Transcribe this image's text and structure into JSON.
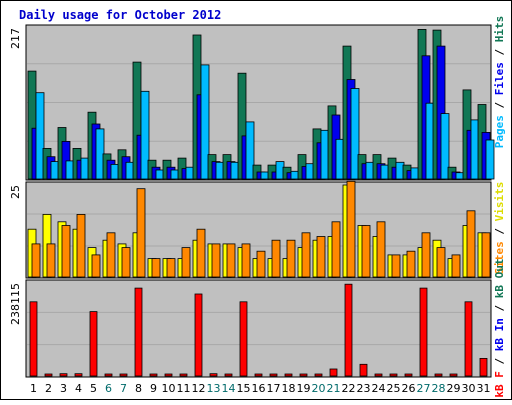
{
  "chart_data": {
    "type": "bar",
    "title": "Daily usage for October 2012",
    "categories": [
      "1",
      "2",
      "3",
      "4",
      "5",
      "6",
      "7",
      "8",
      "9",
      "10",
      "11",
      "12",
      "13",
      "14",
      "15",
      "16",
      "17",
      "18",
      "19",
      "20",
      "21",
      "22",
      "23",
      "24",
      "25",
      "26",
      "27",
      "28",
      "29",
      "30",
      "31"
    ],
    "weekend_days": [
      "6",
      "7",
      "13",
      "14",
      "20",
      "21",
      "27",
      "28"
    ],
    "colors": {
      "frame": "#000000",
      "background": "#ffffff",
      "plot_bg": "#c0c0c0",
      "grid": "#a8a8a8",
      "title": "#0000cc",
      "axis_text": "#000000",
      "weekend_text": "#006b6b",
      "tick_text": "#000000"
    },
    "panels": [
      {
        "name": "hits-files-pages",
        "ymax_label": "217",
        "ylim": [
          0,
          217
        ],
        "series": [
          {
            "name": "Hits",
            "color": "#117755",
            "values": [
              155,
              44,
              74,
              44,
              96,
              36,
              42,
              168,
              27,
              27,
              30,
              207,
              35,
              35,
              152,
              20,
              20,
              17,
              35,
              72,
              105,
              191,
              35,
              35,
              30,
              20,
              215,
              214,
              17,
              128,
              107
            ]
          },
          {
            "name": "Files",
            "color": "#0000ee",
            "values": [
              73,
              32,
              54,
              27,
              79,
              27,
              32,
              63,
              17,
              17,
              15,
              121,
              25,
              25,
              62,
              10,
              10,
              9,
              18,
              52,
              92,
              143,
              22,
              22,
              17,
              12,
              177,
              191,
              10,
              70,
              67
            ]
          },
          {
            "name": "Pages",
            "color": "#00bbff",
            "values": [
              124,
              25,
              26,
              30,
              72,
              21,
              24,
              126,
              13,
              13,
              17,
              164,
              24,
              24,
              82,
              10,
              25,
              11,
              22,
              70,
              57,
              130,
              24,
              20,
              24,
              16,
              109,
              94,
              9,
              85,
              56
            ]
          }
        ]
      },
      {
        "name": "visits-sites",
        "ymax_label": "25",
        "ylim": [
          0,
          25
        ],
        "series": [
          {
            "name": "Visits",
            "color": "#ffff00",
            "values": [
              13,
              17,
              15,
              13,
              8,
              10,
              9,
              12,
              5,
              5,
              5,
              10,
              9,
              9,
              8,
              5,
              5,
              5,
              8,
              10,
              11,
              25,
              14,
              11,
              6,
              6,
              8,
              10,
              5,
              14,
              12
            ]
          },
          {
            "name": "Sites",
            "color": "#ff8800",
            "values": [
              9,
              9,
              14,
              17,
              6,
              12,
              8,
              24,
              5,
              5,
              8,
              13,
              9,
              9,
              9,
              7,
              10,
              10,
              12,
              11,
              15,
              26,
              14,
              15,
              6,
              7,
              12,
              8,
              6,
              18,
              12
            ]
          }
        ]
      },
      {
        "name": "kbf",
        "ymax_label": "238115",
        "ylim": [
          0,
          238115
        ],
        "series": [
          {
            "name": "KBytes",
            "color": "#ff0000",
            "values": [
              190000,
              5000,
              6000,
              6000,
              165000,
              3000,
              3000,
              225000,
              2000,
              2000,
              2000,
              210000,
              6000,
              3000,
              190000,
              2000,
              2000,
              2000,
              2000,
              2000,
              18000,
              235000,
              30000,
              2000,
              2000,
              2000,
              225000,
              3000,
              3000,
              190000,
              45000
            ]
          }
        ]
      }
    ],
    "side_labels": {
      "top": [
        {
          "text": "Pages",
          "color": "#00bbff"
        },
        {
          "text": " / ",
          "color": "#000000"
        },
        {
          "text": "Files",
          "color": "#0000ee"
        },
        {
          "text": " / ",
          "color": "#000000"
        },
        {
          "text": "Hits",
          "color": "#117755"
        }
      ],
      "middle": [
        {
          "text": "Sites",
          "color": "#ff8800"
        },
        {
          "text": " / ",
          "color": "#000000"
        },
        {
          "text": "Visits",
          "color": "#dddd00"
        }
      ],
      "bottom": [
        {
          "text": "kB F",
          "color": "#ff0000"
        },
        {
          "text": " / ",
          "color": "#000000"
        },
        {
          "text": "kB In",
          "color": "#0000ee"
        },
        {
          "text": " / ",
          "color": "#000000"
        },
        {
          "text": "kB Out",
          "color": "#117755"
        }
      ]
    }
  }
}
